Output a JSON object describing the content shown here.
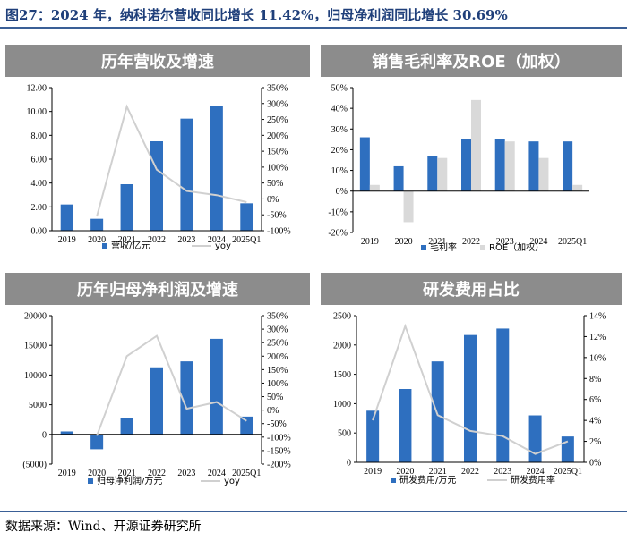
{
  "figure_title": "图27：2024 年，纳科诺尔营收同比增长 11.42%，归母净利润同比增长 30.69%",
  "source": "数据来源：Wind、开源证券研究所",
  "colors": {
    "bar": "#2e6fbf",
    "bar2": "#d9d9d9",
    "line": "#d0d0d0",
    "header": "#8c8c8c",
    "neg": "#c00000",
    "rule": "#3a5f96"
  },
  "chart_data": [
    {
      "id": "revenue",
      "type": "bar+line",
      "title": "历年营收及增速",
      "categories": [
        "2019",
        "2020",
        "2021",
        "2022",
        "2023",
        "2024",
        "2025Q1"
      ],
      "series": [
        {
          "name": "营收/亿元",
          "kind": "bar",
          "axis": "left",
          "values": [
            2.2,
            1.0,
            3.9,
            7.5,
            9.4,
            10.5,
            2.3
          ]
        },
        {
          "name": "yoy",
          "kind": "line",
          "axis": "right",
          "values": [
            null,
            -55,
            290,
            92,
            25,
            12,
            -10
          ]
        }
      ],
      "left_ticks": [
        "0.00",
        "2.00",
        "4.00",
        "6.00",
        "8.00",
        "10.00",
        "12.00"
      ],
      "left_range": [
        0,
        12
      ],
      "right_ticks": [
        "-100%",
        "-50%",
        "0%",
        "50%",
        "100%",
        "150%",
        "200%",
        "250%",
        "300%",
        "350%"
      ],
      "right_range": [
        -100,
        350
      ]
    },
    {
      "id": "margin",
      "type": "bar",
      "title": "销售毛利率及ROE（加权）",
      "categories": [
        "2019",
        "2020",
        "2021",
        "2022",
        "2023",
        "2024",
        "2025Q1"
      ],
      "series": [
        {
          "name": "毛利率",
          "kind": "bar",
          "values": [
            26,
            12,
            17,
            25,
            25,
            24,
            24
          ]
        },
        {
          "name": "ROE（加权）",
          "kind": "bar",
          "values": [
            3,
            -15,
            16,
            44,
            24,
            16,
            3
          ]
        }
      ],
      "left_ticks": [
        "-20%",
        "-10%",
        "0%",
        "10%",
        "20%",
        "30%",
        "40%",
        "50%"
      ],
      "left_range": [
        -20,
        50
      ]
    },
    {
      "id": "profit",
      "type": "bar+line",
      "title": "历年归母净利润及增速",
      "categories": [
        "2019",
        "2020",
        "2021",
        "2022",
        "2023",
        "2024",
        "2025Q1"
      ],
      "series": [
        {
          "name": "归母净利润/万元",
          "kind": "bar",
          "axis": "left",
          "values": [
            500,
            -2500,
            2800,
            11300,
            12300,
            16100,
            3000
          ]
        },
        {
          "name": "yoy",
          "kind": "line",
          "axis": "right",
          "values": [
            null,
            -95,
            200,
            275,
            5,
            30,
            -40
          ]
        }
      ],
      "left_ticks": [
        "(5000)",
        "0",
        "5000",
        "10000",
        "15000",
        "20000"
      ],
      "left_range": [
        -5000,
        20000
      ],
      "right_ticks": [
        "-200%",
        "-150%",
        "-100%",
        "-50%",
        "0%",
        "50%",
        "100%",
        "150%",
        "200%",
        "250%",
        "300%",
        "350%"
      ],
      "right_range": [
        -200,
        350
      ]
    },
    {
      "id": "rnd",
      "type": "bar+line",
      "title": "研发费用占比",
      "categories": [
        "2019",
        "2020",
        "2021",
        "2022",
        "2023",
        "2024",
        "2025Q1"
      ],
      "series": [
        {
          "name": "研发费用/万元",
          "kind": "bar",
          "axis": "left",
          "values": [
            880,
            1250,
            1720,
            2170,
            2280,
            800,
            440
          ]
        },
        {
          "name": "研发费用率",
          "kind": "line",
          "axis": "right",
          "values": [
            4.0,
            13.0,
            4.5,
            3.0,
            2.5,
            0.8,
            2.0
          ]
        }
      ],
      "left_ticks": [
        "0",
        "500",
        "1000",
        "1500",
        "2000",
        "2500"
      ],
      "left_range": [
        0,
        2500
      ],
      "right_ticks": [
        "0%",
        "2%",
        "4%",
        "6%",
        "8%",
        "10%",
        "12%",
        "14%"
      ],
      "right_range": [
        0,
        14
      ]
    }
  ]
}
